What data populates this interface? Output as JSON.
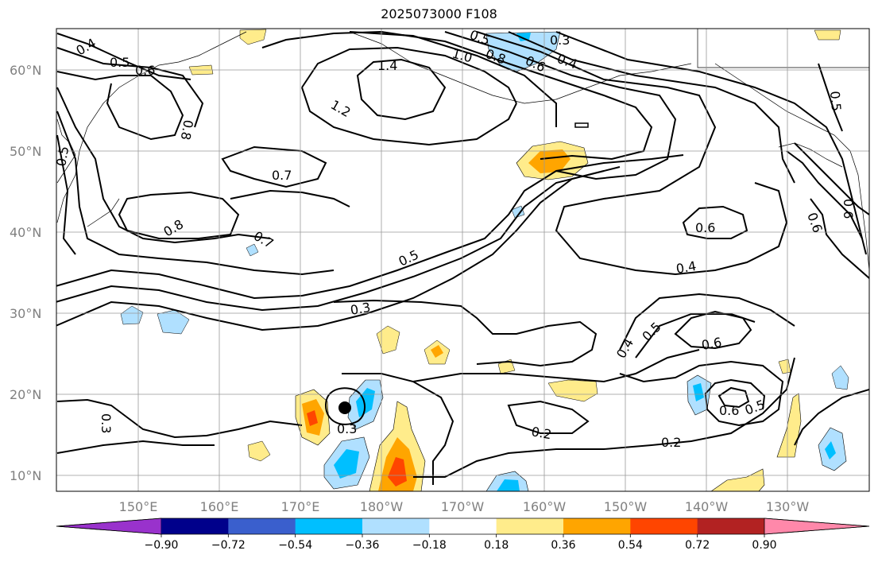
{
  "title": "2025073000 F108",
  "lat_labels": [
    "60°N",
    "50°N",
    "40°N",
    "30°N",
    "20°N",
    "10°N"
  ],
  "lon_labels": [
    "150°E",
    "160°E",
    "170°E",
    "180°W",
    "170°W",
    "160°W",
    "150°W",
    "140°W",
    "130°W"
  ],
  "contour_labels": [
    "0.4",
    "0.5",
    "0.6",
    "0.8",
    "0.5",
    "1.4",
    "1.2",
    "1.0",
    "0.8",
    "0.6",
    "0.4",
    "0.3",
    "0.5",
    "0.5",
    "0.7",
    "0.8",
    "0.7",
    "0.5",
    "0.6",
    "0.4",
    "0.6",
    "0.6",
    "0.3",
    "0.4",
    "0.5",
    "0.6",
    "0.3",
    "0.2",
    "0.2",
    "0.6",
    "0.5",
    "0.3"
  ],
  "colorbar": {
    "ticks": [
      "−0.90",
      "−0.72",
      "−0.54",
      "−0.36",
      "−0.18",
      "0.18",
      "0.36",
      "0.54",
      "0.72",
      "0.90"
    ],
    "colors": [
      "#9932cc",
      "#00008b",
      "#3a5fcd",
      "#00bfff",
      "#b0e0ff",
      "#ffffff",
      "#ffec8b",
      "#ffa500",
      "#ff4500",
      "#b22222",
      "#ff88aa"
    ]
  },
  "colors": {
    "grid": "#999999",
    "tick": "#808080"
  }
}
